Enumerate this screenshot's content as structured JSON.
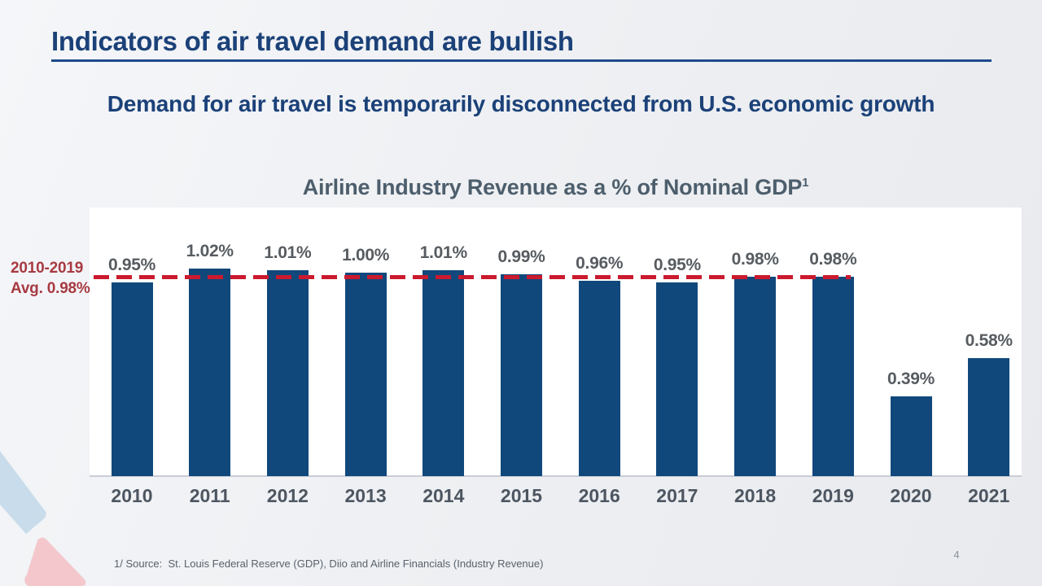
{
  "slide": {
    "title": "Indicators of air travel demand are bullish",
    "subtitle": "Demand for air travel is temporarily disconnected from U.S. economic growth",
    "footnote": "1/ Source:  St. Louis Federal Reserve (GDP), Diio and Airline Financials (Industry Revenue)",
    "page_number": "4",
    "colors": {
      "title_navy": "#1b4178",
      "rule_navy": "#1e4a8c",
      "background": "#eef0f3"
    }
  },
  "chart_data": {
    "type": "bar",
    "title": "Airline Industry Revenue as a % of Nominal GDP",
    "title_superscript": "1",
    "categories": [
      "2010",
      "2011",
      "2012",
      "2013",
      "2014",
      "2015",
      "2016",
      "2017",
      "2018",
      "2019",
      "2020",
      "2021"
    ],
    "values": [
      0.95,
      1.02,
      1.01,
      1.0,
      1.01,
      0.99,
      0.96,
      0.95,
      0.98,
      0.98,
      0.39,
      0.58
    ],
    "value_labels": [
      "0.95%",
      "1.02%",
      "1.01%",
      "1.00%",
      "1.01%",
      "0.99%",
      "0.96%",
      "0.95%",
      "0.98%",
      "0.98%",
      "0.39%",
      "0.58%"
    ],
    "xlabel": "",
    "ylabel": "",
    "ylim": [
      0,
      1.1
    ],
    "grid": false,
    "legend": "none",
    "bar_color": "#11487c",
    "value_label_color": "#575c61",
    "axis_label_color": "#4d5661",
    "reference_line": {
      "value": 0.98,
      "label_line1": "2010-2019",
      "label_line2": "Avg. 0.98%",
      "line_color": "#cb1a2e",
      "label_color": "#a83a42",
      "extent": "spans 2010 through 2019 bars only"
    }
  }
}
